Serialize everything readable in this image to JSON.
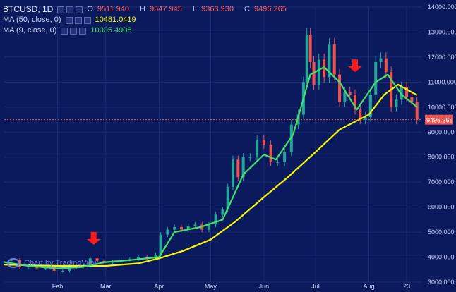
{
  "legend": {
    "symbol": "BTCUSD, 1D",
    "open_label": "O",
    "open": "9511.940",
    "high_label": "H",
    "high": "9547.945",
    "low_label": "L",
    "low": "9363.930",
    "close_label": "C",
    "close": "9496.265",
    "ma50_label": "MA (50, close, 0)",
    "ma50_value": "10481.0419",
    "ma9_label": "MA (9, close, 0)",
    "ma9_value": "10005.4908"
  },
  "watermark": "Chart by TradingView",
  "colors": {
    "background": "#0a1a5c",
    "up": "#26a69a",
    "down": "#ef5350",
    "ma50": "#f7f700",
    "ma9": "#44e06a",
    "arrow": "#ff1a1a",
    "price_tag": "#ef5350"
  },
  "icons": {
    "arrow": "down-arrow-icon",
    "watermark": "tradingview-cloud-icon"
  },
  "chart_data": {
    "type": "candlestick",
    "x_range": [
      "2019-01-01",
      "2019-09-01"
    ],
    "ylim": [
      3000,
      14000
    ],
    "y_ticks": [
      "3000.000",
      "4000.000",
      "5000.000",
      "6000.000",
      "7000.000",
      "8000.000",
      "9000.000",
      "10000.000",
      "11000.000",
      "12000.000",
      "13000.000",
      "14000.000"
    ],
    "x_ticks": [
      {
        "label": "Feb",
        "date": "2019-02-01"
      },
      {
        "label": "Mar",
        "date": "2019-03-01"
      },
      {
        "label": "Apr",
        "date": "2019-04-01"
      },
      {
        "label": "May",
        "date": "2019-05-01"
      },
      {
        "label": "Jun",
        "date": "2019-06-01"
      },
      {
        "label": "Jul",
        "date": "2019-07-01"
      },
      {
        "label": "Aug",
        "date": "2019-08-01"
      },
      {
        "label": "23",
        "date": "2019-08-23"
      }
    ],
    "last_price": 9496.265,
    "last_price_label": "9496.265",
    "close_series": [
      [
        "2019-01-01",
        3850
      ],
      [
        "2019-01-05",
        3880
      ],
      [
        "2019-01-10",
        3600
      ],
      [
        "2019-01-15",
        3650
      ],
      [
        "2019-01-20",
        3550
      ],
      [
        "2019-01-25",
        3570
      ],
      [
        "2019-01-30",
        3450
      ],
      [
        "2019-02-04",
        3450
      ],
      [
        "2019-02-08",
        3650
      ],
      [
        "2019-02-12",
        3600
      ],
      [
        "2019-02-16",
        3650
      ],
      [
        "2019-02-20",
        3950
      ],
      [
        "2019-02-24",
        3850
      ],
      [
        "2019-02-28",
        3800
      ],
      [
        "2019-03-05",
        3800
      ],
      [
        "2019-03-10",
        3900
      ],
      [
        "2019-03-15",
        3920
      ],
      [
        "2019-03-20",
        4000
      ],
      [
        "2019-03-25",
        3950
      ],
      [
        "2019-03-30",
        4100
      ],
      [
        "2019-04-02",
        4900
      ],
      [
        "2019-04-06",
        5100
      ],
      [
        "2019-04-10",
        5200
      ],
      [
        "2019-04-14",
        5100
      ],
      [
        "2019-04-18",
        5250
      ],
      [
        "2019-04-22",
        5300
      ],
      [
        "2019-04-26",
        5100
      ],
      [
        "2019-04-30",
        5300
      ],
      [
        "2019-05-04",
        5700
      ],
      [
        "2019-05-08",
        5900
      ],
      [
        "2019-05-11",
        6800
      ],
      [
        "2019-05-14",
        7900
      ],
      [
        "2019-05-17",
        7200
      ],
      [
        "2019-05-20",
        8000
      ],
      [
        "2019-05-24",
        8000
      ],
      [
        "2019-05-28",
        8700
      ],
      [
        "2019-06-01",
        8500
      ],
      [
        "2019-06-05",
        7800
      ],
      [
        "2019-06-09",
        7800
      ],
      [
        "2019-06-13",
        8200
      ],
      [
        "2019-06-17",
        9300
      ],
      [
        "2019-06-21",
        9700
      ],
      [
        "2019-06-24",
        11000
      ],
      [
        "2019-06-26",
        12900
      ],
      [
        "2019-06-28",
        11800
      ],
      [
        "2019-06-30",
        10900
      ],
      [
        "2019-07-03",
        11900
      ],
      [
        "2019-07-06",
        11200
      ],
      [
        "2019-07-09",
        12500
      ],
      [
        "2019-07-12",
        11300
      ],
      [
        "2019-07-15",
        10200
      ],
      [
        "2019-07-18",
        10600
      ],
      [
        "2019-07-21",
        10500
      ],
      [
        "2019-07-24",
        9900
      ],
      [
        "2019-07-27",
        9500
      ],
      [
        "2019-07-30",
        9600
      ],
      [
        "2019-08-02",
        10500
      ],
      [
        "2019-08-05",
        11800
      ],
      [
        "2019-08-08",
        11950
      ],
      [
        "2019-08-11",
        11400
      ],
      [
        "2019-08-14",
        10000
      ],
      [
        "2019-08-17",
        10300
      ],
      [
        "2019-08-20",
        10800
      ],
      [
        "2019-08-23",
        10400
      ],
      [
        "2019-08-26",
        10200
      ],
      [
        "2019-08-29",
        9500
      ]
    ],
    "series": [
      {
        "name": "MA (50, close, 0)",
        "points": [
          [
            "2019-01-01",
            3700
          ],
          [
            "2019-02-01",
            3650
          ],
          [
            "2019-03-01",
            3650
          ],
          [
            "2019-03-20",
            3750
          ],
          [
            "2019-04-01",
            3950
          ],
          [
            "2019-04-15",
            4250
          ],
          [
            "2019-05-01",
            4700
          ],
          [
            "2019-05-15",
            5400
          ],
          [
            "2019-06-01",
            6400
          ],
          [
            "2019-06-15",
            7200
          ],
          [
            "2019-07-01",
            8200
          ],
          [
            "2019-07-15",
            9100
          ],
          [
            "2019-08-01",
            9700
          ],
          [
            "2019-08-10",
            10500
          ],
          [
            "2019-08-18",
            10900
          ],
          [
            "2019-08-29",
            10481
          ]
        ]
      },
      {
        "name": "MA (9, close, 0)",
        "points": [
          [
            "2019-01-01",
            3800
          ],
          [
            "2019-01-15",
            3650
          ],
          [
            "2019-02-01",
            3550
          ],
          [
            "2019-02-15",
            3600
          ],
          [
            "2019-03-01",
            3800
          ],
          [
            "2019-03-15",
            3880
          ],
          [
            "2019-04-01",
            4000
          ],
          [
            "2019-04-10",
            5000
          ],
          [
            "2019-04-25",
            5200
          ],
          [
            "2019-05-08",
            5500
          ],
          [
            "2019-05-20",
            7300
          ],
          [
            "2019-06-01",
            8100
          ],
          [
            "2019-06-08",
            7900
          ],
          [
            "2019-06-18",
            8900
          ],
          [
            "2019-06-28",
            11300
          ],
          [
            "2019-07-06",
            11600
          ],
          [
            "2019-07-15",
            11000
          ],
          [
            "2019-07-25",
            9900
          ],
          [
            "2019-08-05",
            11000
          ],
          [
            "2019-08-12",
            11300
          ],
          [
            "2019-08-20",
            10500
          ],
          [
            "2019-08-29",
            10005
          ]
        ]
      }
    ],
    "annotations": [
      {
        "type": "arrow-down",
        "date": "2019-02-22",
        "value": 4500
      },
      {
        "type": "arrow-down",
        "date": "2019-07-24",
        "value": 11400
      }
    ]
  }
}
